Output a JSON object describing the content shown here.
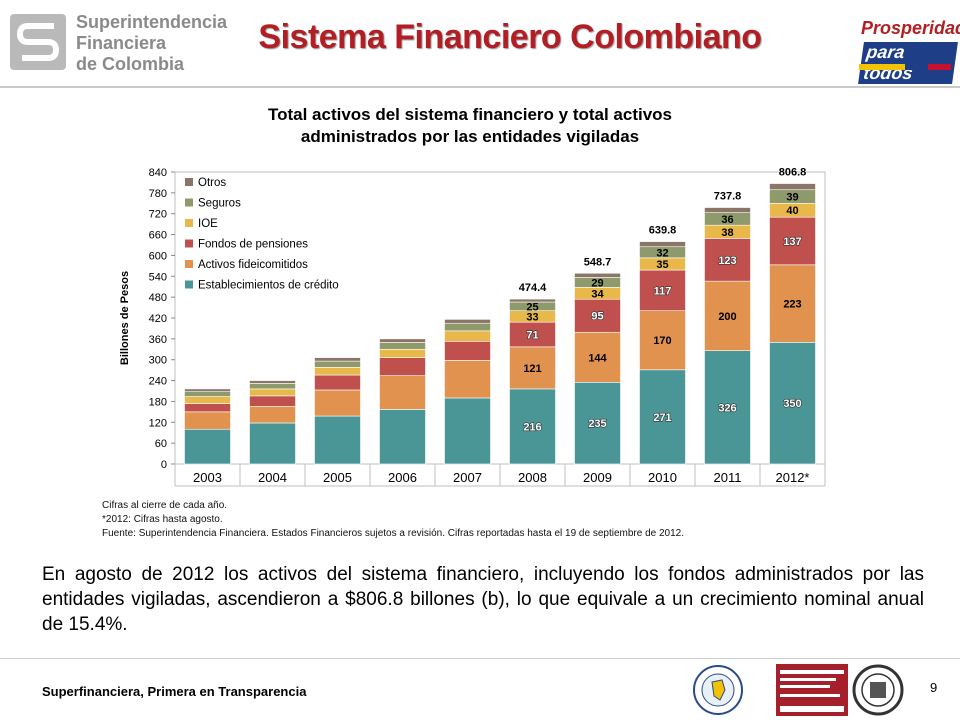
{
  "header": {
    "logo_left_lines": [
      "Superintendencia",
      "Financiera",
      "de Colombia"
    ],
    "title": "Sistema Financiero Colombiano",
    "logo_right_lines": [
      "Prosperidad",
      "para todos"
    ]
  },
  "chart_title_lines": [
    "Total activos del sistema financiero y total activos",
    "administrados por las entidades vigiladas"
  ],
  "chart_data": {
    "type": "bar",
    "stacked": true,
    "categories": [
      "2003",
      "2004",
      "2005",
      "2006",
      "2007",
      "2008",
      "2009",
      "2010",
      "2011",
      "2012*"
    ],
    "ylabel": "Billones de Pesos",
    "ylim": [
      0,
      840
    ],
    "yticks": [
      0,
      60,
      120,
      180,
      240,
      300,
      360,
      420,
      480,
      540,
      600,
      660,
      720,
      780,
      840
    ],
    "legend_position": "top-left",
    "series": [
      {
        "name": "Establecimientos de crédito",
        "color": "#4a9696",
        "values": [
          100,
          118,
          138,
          157,
          190,
          216,
          235,
          271,
          326,
          350
        ],
        "labels": [
          null,
          null,
          null,
          null,
          null,
          "216",
          "235",
          "271",
          "326",
          "350"
        ],
        "label_color": "#ffffff"
      },
      {
        "name": "Activos fideicomitidos",
        "color": "#e0924e",
        "values": [
          50,
          48,
          75,
          97,
          108,
          121,
          144,
          170,
          200,
          223
        ],
        "labels": [
          null,
          null,
          null,
          null,
          null,
          "121",
          "144",
          "170",
          "200",
          "223"
        ],
        "label_color": "#000000"
      },
      {
        "name": "Fondos de pensiones",
        "color": "#c0504d",
        "values": [
          24,
          30,
          43,
          52,
          55,
          71,
          95,
          117,
          123,
          137
        ],
        "labels": [
          null,
          null,
          null,
          null,
          null,
          "71",
          "95",
          "117",
          "123",
          "137"
        ],
        "label_color": "#ffffff"
      },
      {
        "name": "IOE",
        "color": "#e8b84a",
        "values": [
          20,
          20,
          22,
          24,
          30,
          33,
          34,
          35,
          38,
          40
        ],
        "labels": [
          null,
          null,
          null,
          null,
          null,
          "33",
          "34",
          "35",
          "38",
          "40"
        ],
        "label_color": "#000000"
      },
      {
        "name": "Seguros",
        "color": "#8e9a6c",
        "values": [
          14,
          16,
          18,
          20,
          22,
          25,
          29,
          32,
          36,
          39
        ],
        "labels": [
          null,
          null,
          null,
          null,
          null,
          "25",
          "29",
          "32",
          "36",
          "39"
        ],
        "label_color": "#000000"
      },
      {
        "name": "Otros",
        "color": "#8b7566",
        "values": [
          8,
          8,
          10,
          10,
          11,
          8.4,
          11.7,
          14.8,
          14.8,
          17.8
        ],
        "labels": [
          null,
          null,
          null,
          null,
          null,
          null,
          null,
          null,
          null,
          null
        ],
        "label_color": "#000000"
      }
    ],
    "totals": [
      null,
      null,
      null,
      null,
      null,
      "474.4",
      "548.7",
      "639.8",
      "737.8",
      "806.8"
    ]
  },
  "notes": [
    "Cifras al cierre de cada año.",
    "*2012: Cifras hasta agosto.",
    "Fuente: Superintendencia Financiera. Estados Financieros sujetos a revisión. Cifras reportadas hasta el 19 de septiembre de 2012."
  ],
  "body_text": "En agosto de 2012 los activos del sistema financiero, incluyendo los fondos administrados por las entidades vigiladas, ascendieron a $806.8 billones (b), lo que equivale a un crecimiento nominal anual de 15.4%.",
  "footer": {
    "slogan": "Superfinanciera, Primera en Transparencia",
    "page_number": "9"
  }
}
